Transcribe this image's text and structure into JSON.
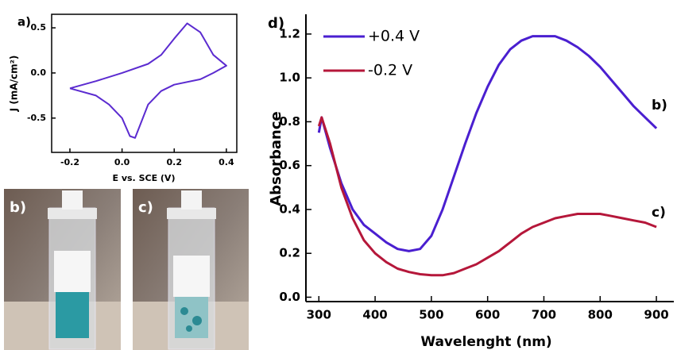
{
  "chart_data": [
    {
      "type": "line",
      "title": "a)",
      "x_label": "E vs. SCE (V)",
      "y_label": "J (mA/cm²)",
      "x": [
        -0.2,
        -0.1,
        0,
        0.1,
        0.15,
        0.2,
        0.25,
        0.3,
        0.35,
        0.4,
        0.35,
        0.3,
        0.2,
        0.15,
        0.1,
        0.05,
        0.03,
        0,
        -0.05,
        -0.1,
        -0.2
      ],
      "series": [
        {
          "color": "#5b2bd0",
          "values": [
            -0.17,
            -0.09,
            0,
            0.1,
            0.2,
            0.38,
            0.55,
            0.45,
            0.2,
            0.08,
            0.0,
            -0.07,
            -0.13,
            -0.2,
            -0.35,
            -0.72,
            -0.7,
            -0.5,
            -0.35,
            -0.25,
            -0.17
          ]
        }
      ],
      "xlim": [
        -0.27,
        0.44
      ],
      "xticks": [
        -0.2,
        {
          "value": 0,
          "label": "0.0"
        },
        0.2,
        0.4
      ],
      "ylim": [
        -0.88,
        0.65
      ],
      "yticks": [
        0.5,
        {
          "value": 0,
          "label": "0.0"
        },
        -0.5
      ]
    },
    {
      "type": "line",
      "title": "d)",
      "x_label": "Wavelenght (nm)",
      "y_label": "Absorbance",
      "x": [
        300,
        305,
        320,
        340,
        360,
        380,
        400,
        420,
        440,
        460,
        480,
        500,
        520,
        540,
        560,
        580,
        600,
        620,
        640,
        660,
        680,
        700,
        720,
        740,
        760,
        780,
        800,
        820,
        840,
        860,
        880,
        900
      ],
      "series": [
        {
          "name": "+0.4 V",
          "color": "#4a1fd0",
          "values": [
            0.75,
            0.82,
            0.68,
            0.52,
            0.4,
            0.33,
            0.29,
            0.25,
            0.22,
            0.21,
            0.22,
            0.28,
            0.4,
            0.55,
            0.7,
            0.84,
            0.96,
            1.06,
            1.13,
            1.17,
            1.19,
            1.19,
            1.19,
            1.17,
            1.14,
            1.1,
            1.05,
            0.99,
            0.93,
            0.87,
            0.82,
            0.77
          ]
        },
        {
          "name": "-0.2 V",
          "color": "#b5173a",
          "values": [
            0.78,
            0.82,
            0.7,
            0.5,
            0.36,
            0.26,
            0.2,
            0.16,
            0.13,
            0.115,
            0.105,
            0.1,
            0.1,
            0.11,
            0.13,
            0.15,
            0.18,
            0.21,
            0.25,
            0.29,
            0.32,
            0.34,
            0.36,
            0.37,
            0.38,
            0.38,
            0.38,
            0.37,
            0.36,
            0.35,
            0.34,
            0.32
          ]
        }
      ],
      "annotations": [
        "b)",
        "c)"
      ],
      "legend": "upper left",
      "xlim": [
        277,
        931
      ],
      "xticks": [
        300,
        400,
        500,
        600,
        700,
        800,
        900
      ],
      "ylim": [
        -0.02,
        1.29
      ],
      "yticks": [
        {
          "value": 0,
          "label": "0.0"
        },
        0.2,
        0.4,
        0.6,
        0.8,
        {
          "value": 1,
          "label": "1.0"
        },
        1.2
      ]
    }
  ],
  "photos": [
    {
      "label": "b)"
    },
    {
      "label": "c)"
    }
  ]
}
